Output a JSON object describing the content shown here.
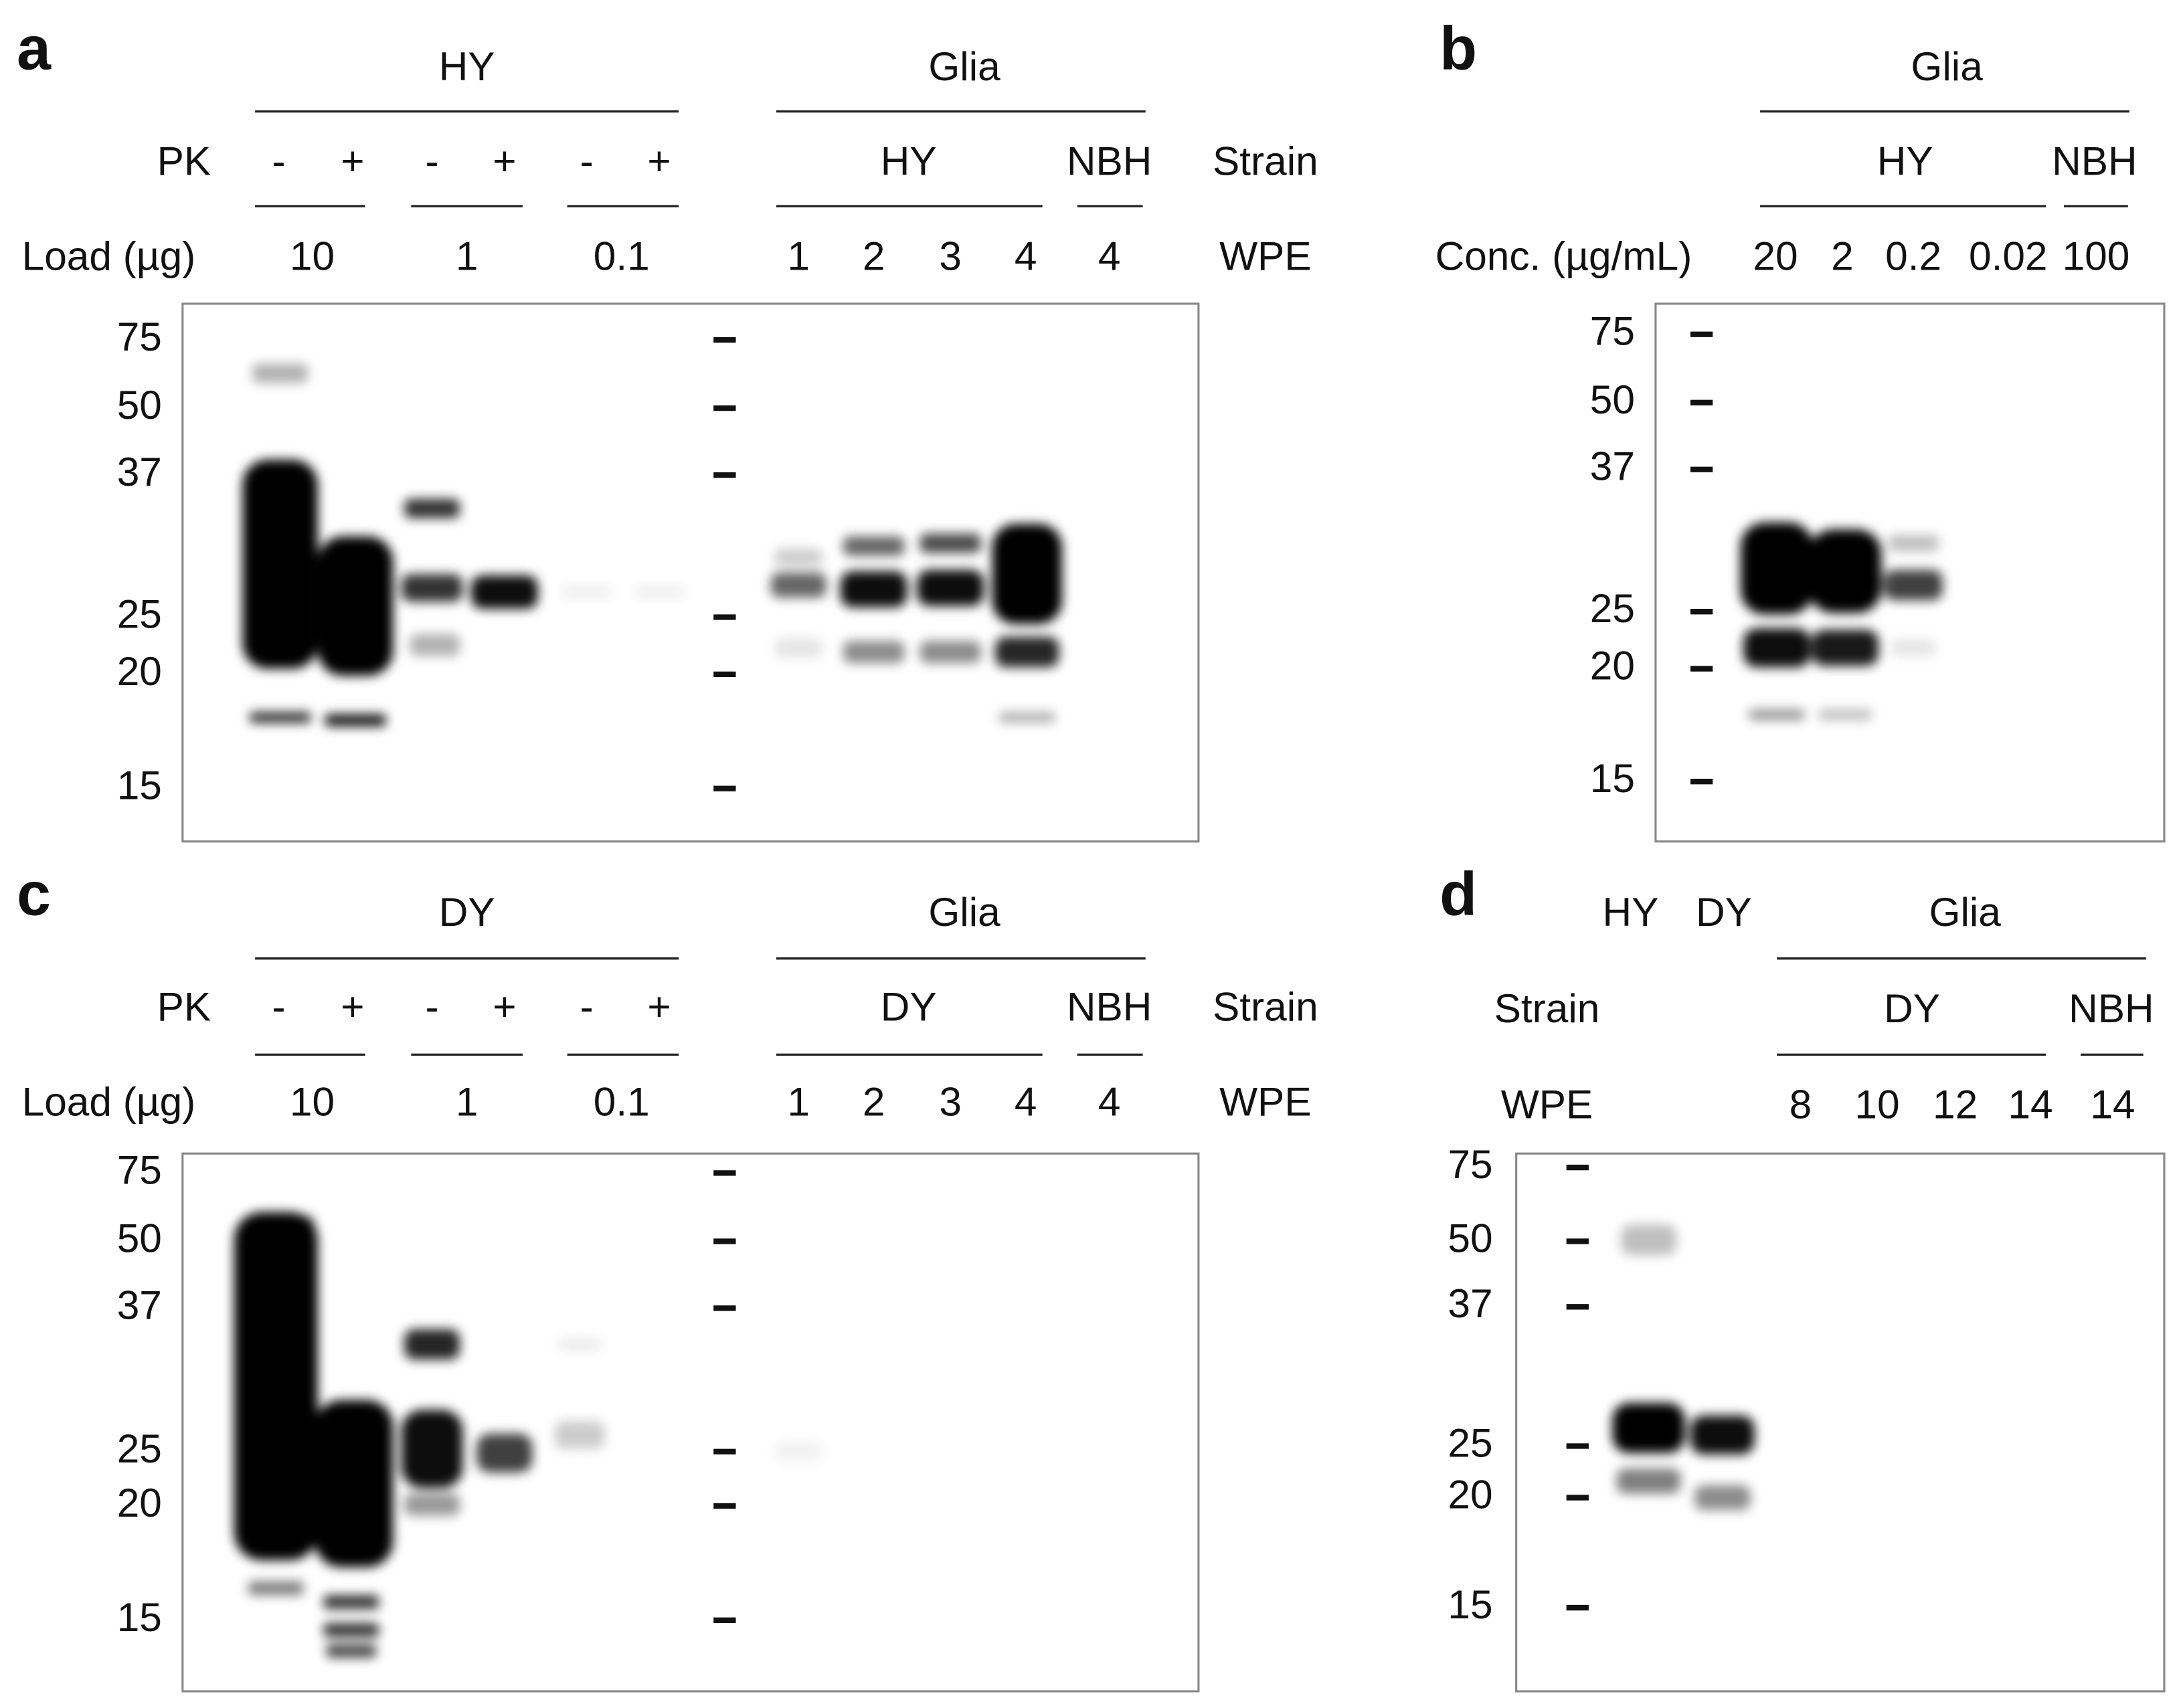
{
  "panel_a": {
    "label": "a",
    "groups": [
      "HY",
      "Glia"
    ],
    "pk_label": "PK",
    "pk": [
      "-",
      "+",
      "-",
      "+",
      "-",
      "+"
    ],
    "strains": [
      "HY",
      "NBH"
    ],
    "strain_label": "Strain",
    "load_label": "Load (µg)",
    "loads": [
      "10",
      "1",
      "0.1"
    ],
    "wpe": [
      "1",
      "2",
      "3",
      "4",
      "4"
    ],
    "wpe_label": "WPE",
    "markers": [
      75,
      50,
      37,
      25,
      20,
      15
    ]
  },
  "panel_b": {
    "label": "b",
    "groups": [
      "Glia"
    ],
    "strains": [
      "HY",
      "NBH"
    ],
    "conc_label": "Conc. (µg/mL)",
    "conc": [
      "20",
      "2",
      "0.2",
      "0.02",
      "100"
    ],
    "markers": [
      75,
      50,
      37,
      25,
      20,
      15
    ]
  },
  "panel_c": {
    "label": "c",
    "groups": [
      "DY",
      "Glia"
    ],
    "pk_label": "PK",
    "pk": [
      "-",
      "+",
      "-",
      "+",
      "-",
      "+"
    ],
    "strains": [
      "DY",
      "NBH"
    ],
    "strain_label": "Strain",
    "load_label": "Load (µg)",
    "loads": [
      "10",
      "1",
      "0.1"
    ],
    "wpe": [
      "1",
      "2",
      "3",
      "4",
      "4"
    ],
    "wpe_label": "WPE",
    "markers": [
      75,
      50,
      37,
      25,
      20,
      15
    ]
  },
  "panel_d": {
    "label": "d",
    "groups": [
      "HY",
      "DY",
      "Glia"
    ],
    "strain_label": "Strain",
    "strains": [
      "DY",
      "NBH"
    ],
    "wpe_label": "WPE",
    "wpe": [
      "8",
      "10",
      "12",
      "14",
      "14"
    ],
    "markers": [
      75,
      50,
      37,
      25,
      20,
      15
    ]
  }
}
